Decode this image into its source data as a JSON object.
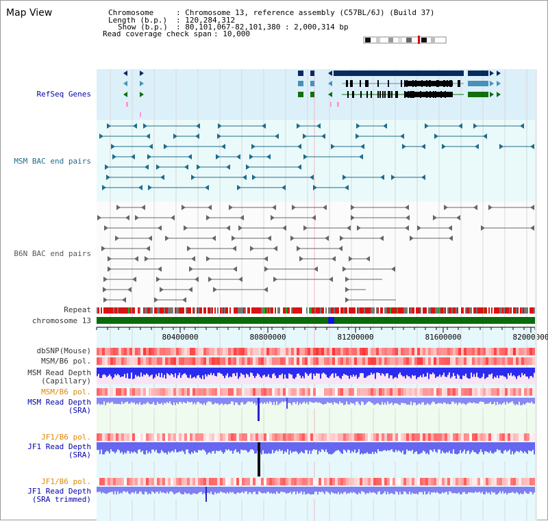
{
  "view": {
    "title": "Map View"
  },
  "info": {
    "chromosome_label": "Chromosome",
    "chromosome_value": ": Chromosome 13, reference assembly (C57BL/6J) (Build 37)",
    "length_label": "Length (b.p.)",
    "length_value": ": 120,284,312",
    "show_label": "Show (b.p.)",
    "show_value": ": 80,101,067-82,101,380 : 2,000,314 bp",
    "coverage_label": "Read coverage check span",
    "coverage_value": ": 10,000"
  },
  "tracks": {
    "refseq": "RefSeq Genes",
    "msm_bac": "MSM BAC end pairs",
    "b6n_bac": "B6N BAC end pairs",
    "repeat": "Repeat",
    "chromosome": "chromosome 13",
    "dbsnp": "dbSNP(Mouse)",
    "msm_pol_1": "MSM/B6 pol.",
    "msm_depth_cap_1": "MSM Read Depth",
    "msm_depth_cap_2": "(Capillary)",
    "msm_pol_2": "MSM/B6 pol.",
    "msm_depth_sra_1": "MSM Read Depth",
    "msm_depth_sra_2": "(SRA)",
    "jf1_pol_1": "JF1/B6 pol.",
    "jf1_depth_sra_1": "JF1 Read Depth",
    "jf1_depth_sra_2": "(SRA)",
    "jf1_pol_2": "JF1/B6 pol.",
    "jf1_depth_trim_1": "JF1 Read Depth",
    "jf1_depth_trim_2": "(SRA trimmed)"
  },
  "axis": {
    "ticks": [
      "80400000",
      "80800000",
      "81200000",
      "81600000",
      "82000000"
    ]
  },
  "colors": {
    "refseq_bg": "#dcf0fa",
    "bac_bg": "#eafafa",
    "gene_dark": "#0a2a5e",
    "gene_light": "#4a90b8",
    "gene_green": "#107010",
    "msm_bac": "#1f6b8a",
    "b6n_bac": "#666666",
    "chrom_band": "#0a6b0a",
    "depth_blue": "#3a3af0",
    "label_blue": "#0000aa",
    "label_orange": "#dd8800",
    "label_gray": "#333333"
  }
}
